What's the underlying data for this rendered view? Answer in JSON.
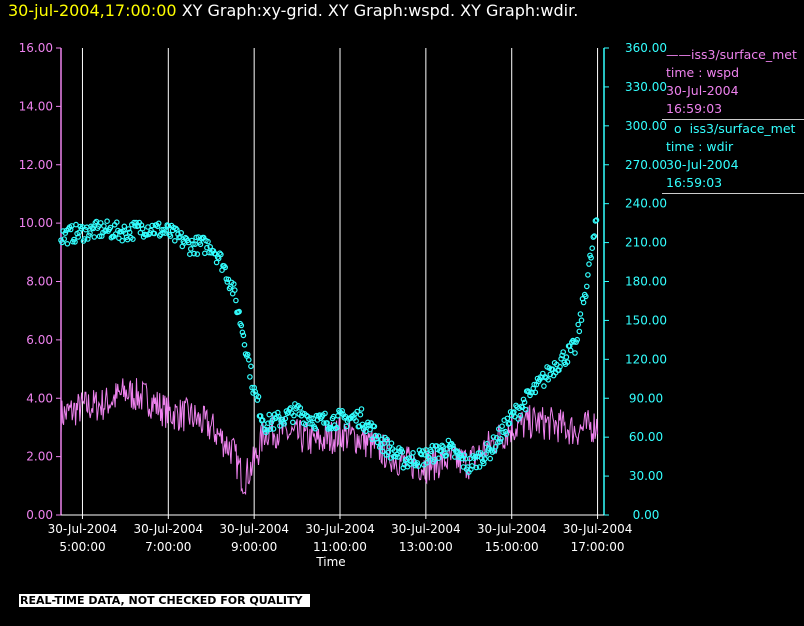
{
  "header": {
    "timestamp": "30-jul-2004,17:00:00",
    "rest": "XY Graph:xy-grid.  XY Graph:wspd.  XY Graph:wdir."
  },
  "legend": [
    {
      "name": "iss3/surface_met",
      "lines": [
        "time : wspd",
        "30-Jul-2004",
        "16:59:03"
      ]
    },
    {
      "name": "iss3/surface_met",
      "lines": [
        "time : wdir",
        "30-Jul-2004",
        "16:59:03"
      ]
    }
  ],
  "footer": {
    "warning": "REAL-TIME DATA, NOT CHECKED FOR QUALITY"
  },
  "colors": {
    "wspd": "#ee82ee",
    "wdir": "#33ffff",
    "grid": "#ffffff",
    "background": "#000000"
  },
  "chart_data": {
    "type": "line",
    "xlabel": "Time",
    "x_range_hours": [
      4.5,
      17.15
    ],
    "x_ticks": [
      {
        "hour": 5,
        "date": "30-Jul-2004",
        "time": "5:00:00"
      },
      {
        "hour": 7,
        "date": "30-Jul-2004",
        "time": "7:00:00"
      },
      {
        "hour": 9,
        "date": "30-Jul-2004",
        "time": "9:00:00"
      },
      {
        "hour": 11,
        "date": "30-Jul-2004",
        "time": "11:00:00"
      },
      {
        "hour": 13,
        "date": "30-Jul-2004",
        "time": "13:00:00"
      },
      {
        "hour": 15,
        "date": "30-Jul-2004",
        "time": "15:00:00"
      },
      {
        "hour": 17,
        "date": "30-Jul-2004",
        "time": "17:00:00"
      }
    ],
    "vertical_grid": true,
    "y_left": {
      "ylim": [
        0,
        16
      ],
      "ticks": [
        "0.00",
        "2.00",
        "4.00",
        "6.00",
        "8.00",
        "10.00",
        "12.00",
        "14.00",
        "16.00"
      ]
    },
    "y_right": {
      "ylim": [
        0,
        360
      ],
      "ticks": [
        "0.00",
        "30.00",
        "60.00",
        "90.00",
        "120.00",
        "150.00",
        "180.00",
        "210.00",
        "240.00",
        "270.00",
        "300.00",
        "330.00",
        "360.00"
      ]
    },
    "series": [
      {
        "key": "wspd",
        "axis": "left",
        "style": "line",
        "x": [
          4.5,
          5.0,
          5.5,
          6.0,
          6.5,
          7.0,
          7.5,
          8.0,
          8.25,
          8.5,
          8.75,
          9.0,
          9.25,
          9.5,
          10.0,
          10.5,
          11.0,
          11.5,
          12.0,
          12.5,
          13.0,
          13.5,
          14.0,
          14.5,
          15.0,
          15.5,
          16.0,
          16.5,
          17.0
        ],
        "y": [
          3.4,
          3.7,
          3.8,
          4.2,
          4.0,
          3.5,
          3.4,
          3.0,
          2.6,
          2.2,
          1.2,
          1.8,
          2.9,
          2.9,
          2.7,
          2.5,
          2.8,
          2.6,
          2.2,
          1.8,
          1.7,
          1.9,
          1.8,
          2.4,
          3.0,
          3.2,
          3.1,
          2.9,
          3.1
        ]
      },
      {
        "key": "wdir",
        "axis": "right",
        "style": "markers",
        "x": [
          4.5,
          5.0,
          5.5,
          6.0,
          6.5,
          7.0,
          7.5,
          8.0,
          8.25,
          8.5,
          8.75,
          9.0,
          9.25,
          9.5,
          10.0,
          10.5,
          11.0,
          11.5,
          12.0,
          12.5,
          13.0,
          13.5,
          14.0,
          14.5,
          15.0,
          15.5,
          16.0,
          16.5,
          17.0
        ],
        "y": [
          215,
          218,
          220,
          218,
          222,
          218,
          208,
          208,
          195,
          175,
          140,
          95,
          70,
          72,
          80,
          72,
          74,
          75,
          55,
          42,
          45,
          52,
          38,
          50,
          75,
          95,
          115,
          130,
          230
        ]
      }
    ]
  }
}
